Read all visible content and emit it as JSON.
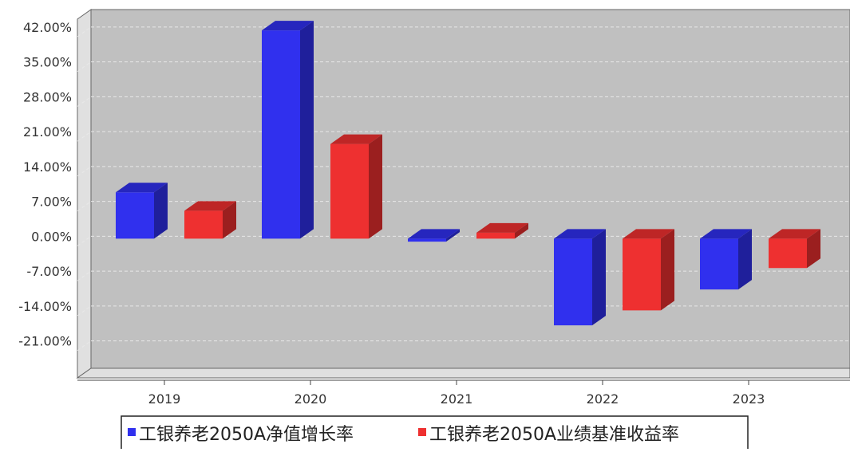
{
  "chart_data": {
    "type": "bar",
    "categories": [
      "2019",
      "2020",
      "2021",
      "2022",
      "2023"
    ],
    "series": [
      {
        "name": "工银养老2050A净值增长率",
        "color": "#3030ee",
        "values": [
          9.3,
          41.8,
          -0.6,
          -17.4,
          -10.2
        ]
      },
      {
        "name": "工银养老2050A业绩基准收益率",
        "color": "#ee3030",
        "values": [
          5.6,
          19.0,
          1.2,
          -14.4,
          -5.9
        ]
      }
    ],
    "y_ticks": [
      "42.00%",
      "35.00%",
      "28.00%",
      "21.00%",
      "14.00%",
      "7.00%",
      "0.00%",
      "-7.00%",
      "-14.00%",
      "-21.00%"
    ],
    "y_tick_values": [
      42,
      35,
      28,
      21,
      14,
      7,
      0,
      -7,
      -14,
      -21
    ],
    "ylim": [
      -26.5,
      45.5
    ],
    "grid": true,
    "legend_position": "bottom",
    "title": "",
    "xlabel": "",
    "ylabel": "",
    "colors": {
      "plot_background": "#c0c0c0",
      "wall_side": "#e0e0e0",
      "grid": "#e8e8e8"
    }
  }
}
